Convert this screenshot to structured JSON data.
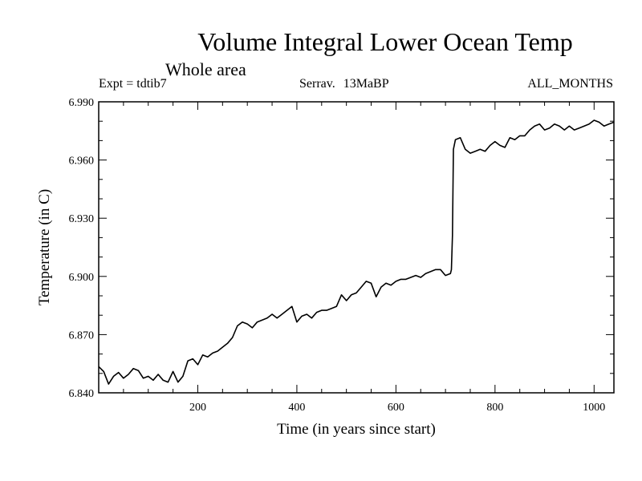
{
  "chart_data": {
    "type": "line",
    "title": "Volume Integral Lower Ocean Temp",
    "subtitle": "Whole area",
    "header": {
      "left": "Expt = tdtib7",
      "middle_a": "Serrav.",
      "middle_b": "13MaBP",
      "right": "ALL_MONTHS"
    },
    "xlabel": "Time (in years since start)",
    "ylabel": "Temperature (in C)",
    "xlim": [
      0,
      1040
    ],
    "ylim": [
      6.84,
      6.99
    ],
    "x_ticks": [
      200,
      400,
      600,
      800,
      1000
    ],
    "y_ticks": [
      "6.840",
      "6.870",
      "6.900",
      "6.930",
      "6.960",
      "6.990"
    ],
    "series": [
      {
        "name": "Volume Integral Lower Ocean Temp",
        "x": [
          0,
          10,
          20,
          30,
          40,
          50,
          60,
          70,
          80,
          90,
          100,
          110,
          120,
          130,
          140,
          150,
          160,
          170,
          180,
          190,
          200,
          210,
          220,
          230,
          240,
          250,
          260,
          270,
          280,
          290,
          300,
          310,
          320,
          330,
          340,
          350,
          360,
          370,
          380,
          390,
          400,
          410,
          420,
          430,
          440,
          450,
          460,
          470,
          480,
          490,
          500,
          510,
          520,
          530,
          540,
          550,
          560,
          570,
          580,
          590,
          600,
          610,
          620,
          630,
          640,
          650,
          660,
          670,
          680,
          690,
          700,
          710,
          712,
          714,
          716,
          720,
          730,
          740,
          750,
          760,
          770,
          780,
          790,
          800,
          810,
          820,
          830,
          840,
          850,
          860,
          870,
          880,
          890,
          900,
          910,
          920,
          930,
          940,
          950,
          960,
          970,
          980,
          990,
          1000,
          1010,
          1020,
          1030,
          1040
        ],
        "y": [
          6.8535,
          6.851,
          6.8445,
          6.8485,
          6.8505,
          6.8475,
          6.8495,
          6.8525,
          6.8515,
          6.8475,
          6.8485,
          6.8465,
          6.8495,
          6.8465,
          6.8455,
          6.851,
          6.8455,
          6.8485,
          6.8565,
          6.8575,
          6.8545,
          6.8595,
          6.8585,
          6.8605,
          6.8615,
          6.8635,
          6.8655,
          6.8685,
          6.8745,
          6.8765,
          6.8755,
          6.8735,
          6.8765,
          6.8775,
          6.8785,
          6.8805,
          6.8785,
          6.8805,
          6.8825,
          6.8845,
          6.8765,
          6.8795,
          6.8805,
          6.8785,
          6.8815,
          6.8825,
          6.8825,
          6.8835,
          6.8845,
          6.8905,
          6.8875,
          6.8905,
          6.8915,
          6.8945,
          6.8975,
          6.8965,
          6.8895,
          6.8945,
          6.8965,
          6.8955,
          6.8975,
          6.8985,
          6.8985,
          6.8995,
          6.9005,
          6.8995,
          6.9015,
          6.9025,
          6.9035,
          6.9035,
          6.9005,
          6.9015,
          6.9035,
          6.921,
          6.9655,
          6.9705,
          6.9715,
          6.9655,
          6.9635,
          6.9645,
          6.9655,
          6.9645,
          6.9675,
          6.9695,
          6.9675,
          6.9665,
          6.9715,
          6.9705,
          6.9725,
          6.9725,
          6.9755,
          6.9775,
          6.9785,
          6.9755,
          6.9765,
          6.9785,
          6.9775,
          6.9755,
          6.9775,
          6.9755,
          6.9765,
          6.9775,
          6.9785,
          6.9805,
          6.9795,
          6.9775,
          6.9785,
          6.9795
        ]
      }
    ],
    "grid": false,
    "line_color": "#000000"
  }
}
